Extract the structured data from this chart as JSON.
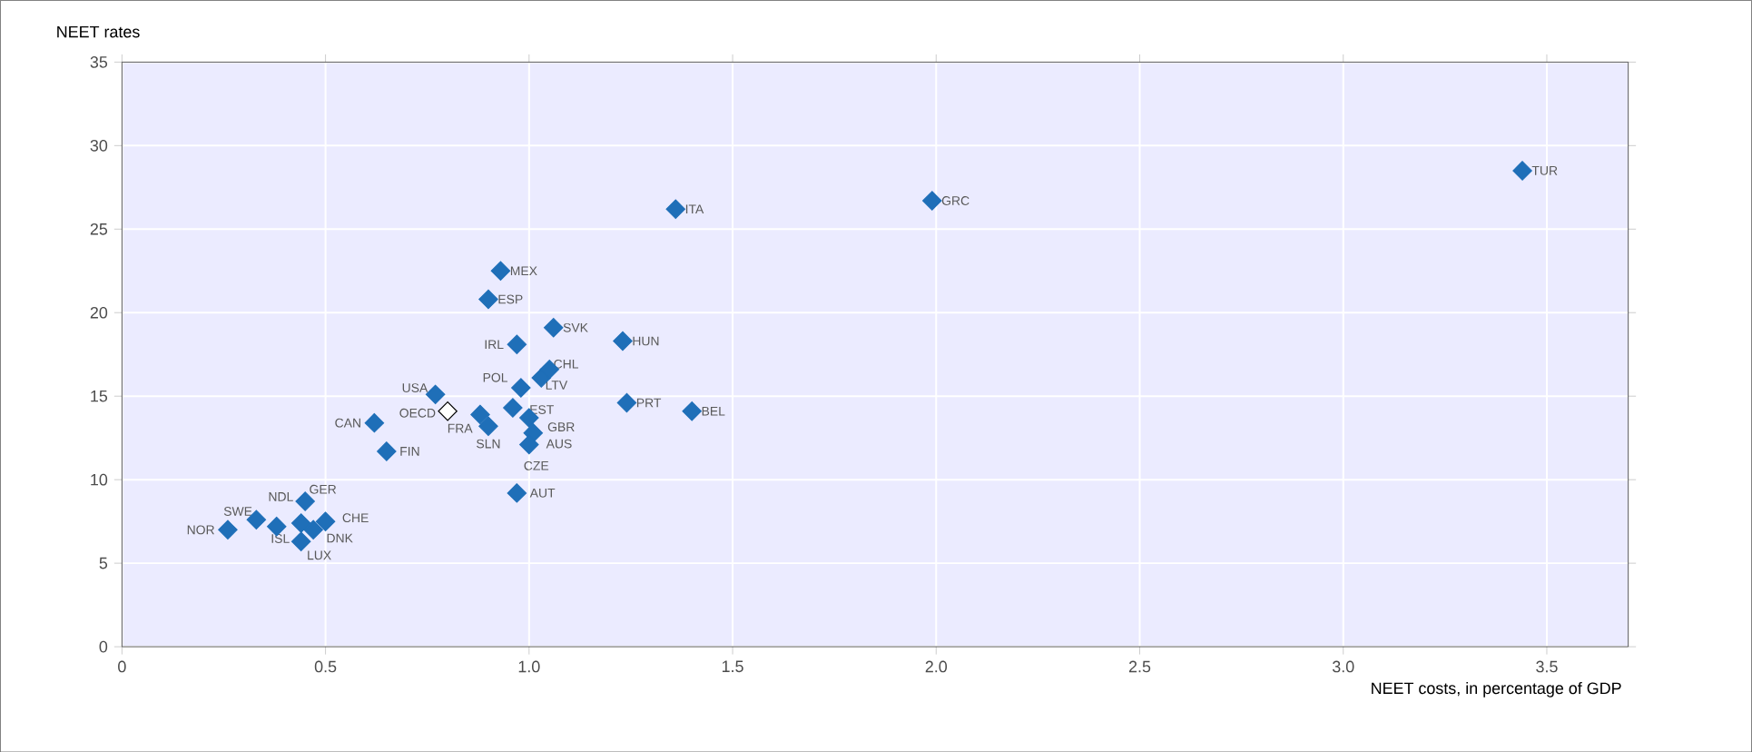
{
  "chart_data": {
    "type": "scatter",
    "ylabel": "NEET rates",
    "xlabel": "NEET costs, in percentage of GDP",
    "xlim": [
      0,
      3.7
    ],
    "ylim": [
      0,
      35
    ],
    "xticks": [
      0,
      0.5,
      {
        "value": 1,
        "label": "1.0"
      },
      1.5,
      {
        "value": 2,
        "label": "2.0"
      },
      2.5,
      {
        "value": 3,
        "label": "3.0"
      },
      3.5
    ],
    "yticks": [
      0,
      5,
      10,
      15,
      20,
      25,
      30,
      35
    ],
    "grid": true,
    "marker": "diamond",
    "series": [
      {
        "color": "#1f6fb8",
        "x": [
          0.26,
          0.33,
          0.38,
          0.44,
          0.45,
          0.5,
          0.47,
          0.44,
          0.62,
          0.77,
          0.65,
          0.88,
          0.9,
          0.98,
          0.96,
          1.0,
          1.01,
          1.0,
          0.97,
          1.03,
          1.05,
          0.97,
          1.06,
          1.23,
          0.93,
          0.9,
          1.24,
          1.4,
          1.36,
          1.99,
          3.44
        ],
        "values": [
          7.0,
          7.6,
          7.2,
          7.4,
          8.7,
          7.5,
          7.0,
          6.3,
          13.4,
          15.1,
          11.7,
          13.9,
          13.2,
          15.5,
          14.3,
          13.7,
          12.8,
          12.1,
          9.2,
          16.1,
          16.6,
          18.1,
          19.1,
          18.3,
          22.5,
          20.8,
          14.6,
          14.1,
          26.2,
          26.7,
          28.5
        ]
      },
      {
        "color": "#ffffff",
        "x": [
          0.8
        ],
        "values": [
          14.1
        ]
      }
    ],
    "annotations": [
      {
        "text": "NOR",
        "x": 0.26,
        "y": 7.0
      },
      {
        "text": "SWE",
        "x": 0.33,
        "y": 7.6
      },
      {
        "text": "ISL",
        "x": 0.38,
        "y": 7.2
      },
      {
        "text": "NDL",
        "x": 0.44,
        "y": 7.4
      },
      {
        "text": "GER",
        "x": 0.45,
        "y": 8.7
      },
      {
        "text": "CHE",
        "x": 0.5,
        "y": 7.5
      },
      {
        "text": "DNK",
        "x": 0.47,
        "y": 7.0
      },
      {
        "text": "LUX",
        "x": 0.44,
        "y": 6.3
      },
      {
        "text": "CAN",
        "x": 0.62,
        "y": 13.4
      },
      {
        "text": "USA",
        "x": 0.77,
        "y": 15.1
      },
      {
        "text": "FIN",
        "x": 0.65,
        "y": 11.7
      },
      {
        "text": "FRA",
        "x": 0.88,
        "y": 13.9
      },
      {
        "text": "SLN",
        "x": 0.9,
        "y": 13.2
      },
      {
        "text": "POL",
        "x": 0.98,
        "y": 15.5
      },
      {
        "text": "EST",
        "x": 0.96,
        "y": 14.3
      },
      {
        "text": "GBR",
        "x": 1.0,
        "y": 13.7
      },
      {
        "text": "AUS",
        "x": 1.01,
        "y": 12.8
      },
      {
        "text": "CZE",
        "x": 1.0,
        "y": 12.1
      },
      {
        "text": "AUT",
        "x": 0.97,
        "y": 9.2
      },
      {
        "text": "LTV",
        "x": 1.03,
        "y": 16.1
      },
      {
        "text": "CHL",
        "x": 1.05,
        "y": 16.6
      },
      {
        "text": "IRL",
        "x": 0.97,
        "y": 18.1
      },
      {
        "text": "SVK",
        "x": 1.06,
        "y": 19.1
      },
      {
        "text": "HUN",
        "x": 1.23,
        "y": 18.3
      },
      {
        "text": "MEX",
        "x": 0.93,
        "y": 22.5
      },
      {
        "text": "ESP",
        "x": 0.9,
        "y": 20.8
      },
      {
        "text": "PRT",
        "x": 1.24,
        "y": 14.6
      },
      {
        "text": "BEL",
        "x": 1.4,
        "y": 14.1
      },
      {
        "text": "ITA",
        "x": 1.36,
        "y": 26.2
      },
      {
        "text": "GRC",
        "x": 1.99,
        "y": 26.7
      },
      {
        "text": "TUR",
        "x": 3.44,
        "y": 28.5
      },
      {
        "text": "OECD",
        "x": 0.8,
        "y": 14.1
      }
    ]
  }
}
